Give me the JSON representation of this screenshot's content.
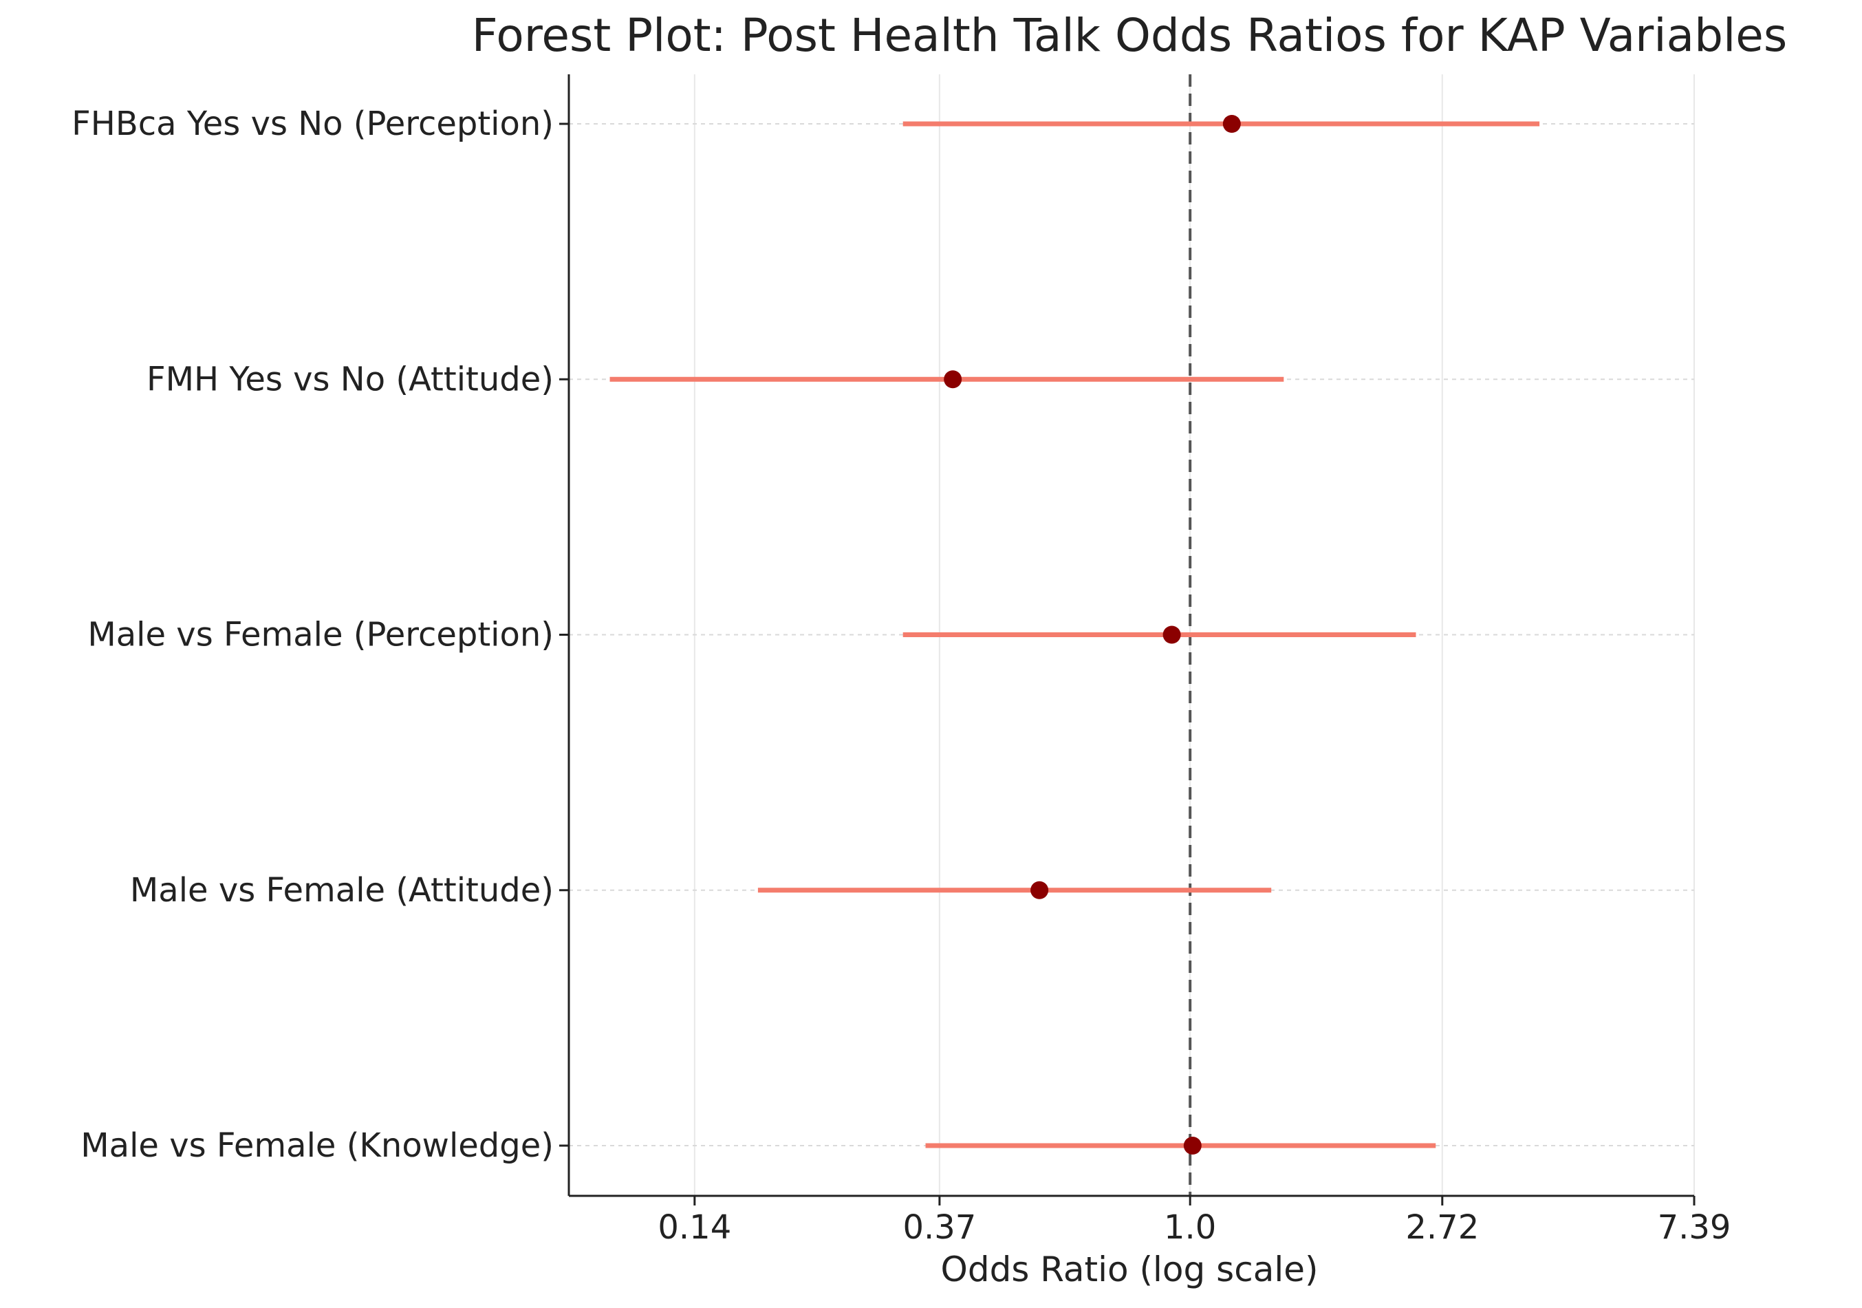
{
  "chart_data": {
    "type": "forest",
    "title": "Forest Plot: Post Health Talk Odds Ratios for KAP Variables",
    "xlabel": "Odds Ratio (log scale)",
    "ylabel": "",
    "x_scale": "log",
    "xlim": [
      0.085,
      7.39
    ],
    "x_ticks": [
      {
        "value": 0.14,
        "label": "0.14"
      },
      {
        "value": 0.37,
        "label": "0.37"
      },
      {
        "value": 1.0,
        "label": "1.0"
      },
      {
        "value": 2.72,
        "label": "2.72"
      },
      {
        "value": 7.39,
        "label": "7.39"
      }
    ],
    "reference_value": 1.0,
    "grid": true,
    "rows": [
      {
        "label": "FHBca Yes vs No (Perception)",
        "or": 1.18,
        "ci_low": 0.32,
        "ci_high": 4.0
      },
      {
        "label": "FMH Yes vs No (Attitude)",
        "or": 0.39,
        "ci_low": 0.1,
        "ci_high": 1.45
      },
      {
        "label": "Male vs Female (Perception)",
        "or": 0.93,
        "ci_low": 0.32,
        "ci_high": 2.45
      },
      {
        "label": "Male vs Female (Attitude)",
        "or": 0.55,
        "ci_low": 0.18,
        "ci_high": 1.38
      },
      {
        "label": "Male vs Female (Knowledge)",
        "or": 1.01,
        "ci_low": 0.35,
        "ci_high": 2.65
      }
    ],
    "colors": {
      "ci_line": "#f47c6c",
      "point": "#8b0000",
      "reference_line": "#555555",
      "grid": "#d9d9d9",
      "axis": "#222222"
    }
  }
}
